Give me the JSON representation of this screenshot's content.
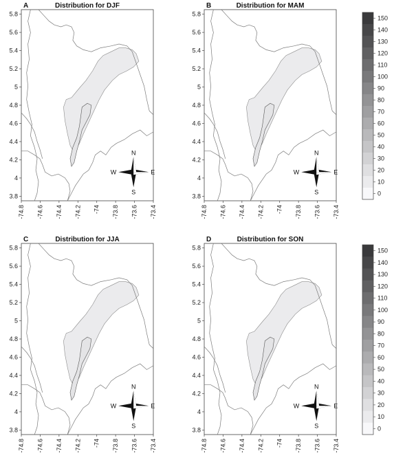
{
  "chart_data": [
    {
      "type": "heatmap",
      "panel_letter": "A",
      "title": "Distribution for DJF",
      "xlabel": "",
      "ylabel": "",
      "xlim": [
        -74.8,
        -73.4
      ],
      "ylim": [
        3.75,
        5.85
      ],
      "x_ticks": [
        "-74.8",
        "-74.6",
        "-74.4",
        "-74.2",
        "-74",
        "-73.8",
        "-73.6",
        "-73.4"
      ],
      "y_ticks": [
        "5.8",
        "5.6",
        "5.4",
        "5.2",
        "5",
        "4.8",
        "4.6",
        "4.4",
        "4.2",
        "4",
        "3.8"
      ],
      "field_level": 10,
      "compass": {
        "N": "N",
        "S": "S",
        "E": "E",
        "W": "W"
      }
    },
    {
      "type": "heatmap",
      "panel_letter": "B",
      "title": "Distribution for MAM",
      "xlabel": "",
      "ylabel": "",
      "xlim": [
        -74.8,
        -73.4
      ],
      "ylim": [
        3.75,
        5.85
      ],
      "x_ticks": [
        "-74.8",
        "-74.6",
        "-74.4",
        "-74.2",
        "-74",
        "-73.8",
        "-73.6",
        "-73.4"
      ],
      "y_ticks": [
        "5.8",
        "5.6",
        "5.4",
        "5.2",
        "5",
        "4.8",
        "4.6",
        "4.4",
        "4.2",
        "4",
        "3.8"
      ],
      "field_level": 10,
      "compass": {
        "N": "N",
        "S": "S",
        "E": "E",
        "W": "W"
      }
    },
    {
      "type": "heatmap",
      "panel_letter": "C",
      "title": "Distribution for JJA",
      "xlabel": "",
      "ylabel": "",
      "xlim": [
        -74.8,
        -73.4
      ],
      "ylim": [
        3.75,
        5.85
      ],
      "x_ticks": [
        "-74.8",
        "-74.6",
        "-74.4",
        "-74.2",
        "-74",
        "-73.8",
        "-73.6",
        "-73.4"
      ],
      "y_ticks": [
        "5.8",
        "5.6",
        "5.4",
        "5.2",
        "5",
        "4.8",
        "4.6",
        "4.4",
        "4.2",
        "4",
        "3.8"
      ],
      "field_level": 10,
      "compass": {
        "N": "N",
        "S": "S",
        "E": "E",
        "W": "W"
      }
    },
    {
      "type": "heatmap",
      "panel_letter": "D",
      "title": "Distribution for SON",
      "xlabel": "",
      "ylabel": "",
      "xlim": [
        -74.8,
        -73.4
      ],
      "ylim": [
        3.75,
        5.85
      ],
      "x_ticks": [
        "-74.8",
        "-74.6",
        "-74.4",
        "-74.2",
        "-74",
        "-73.8",
        "-73.6",
        "-73.4"
      ],
      "y_ticks": [
        "5.8",
        "5.6",
        "5.4",
        "5.2",
        "5",
        "4.8",
        "4.6",
        "4.4",
        "4.2",
        "4",
        "3.8"
      ],
      "field_level": 10,
      "compass": {
        "N": "N",
        "S": "S",
        "E": "E",
        "W": "W"
      }
    }
  ],
  "colorbars": [
    {
      "levels": [
        "150",
        "140",
        "130",
        "120",
        "110",
        "100",
        "90",
        "80",
        "70",
        "60",
        "50",
        "40",
        "30",
        "20",
        "10",
        "0"
      ]
    },
    {
      "levels": [
        "150",
        "140",
        "130",
        "120",
        "110",
        "100",
        "90",
        "80",
        "70",
        "60",
        "50",
        "40",
        "30",
        "20",
        "10",
        "0"
      ]
    }
  ]
}
